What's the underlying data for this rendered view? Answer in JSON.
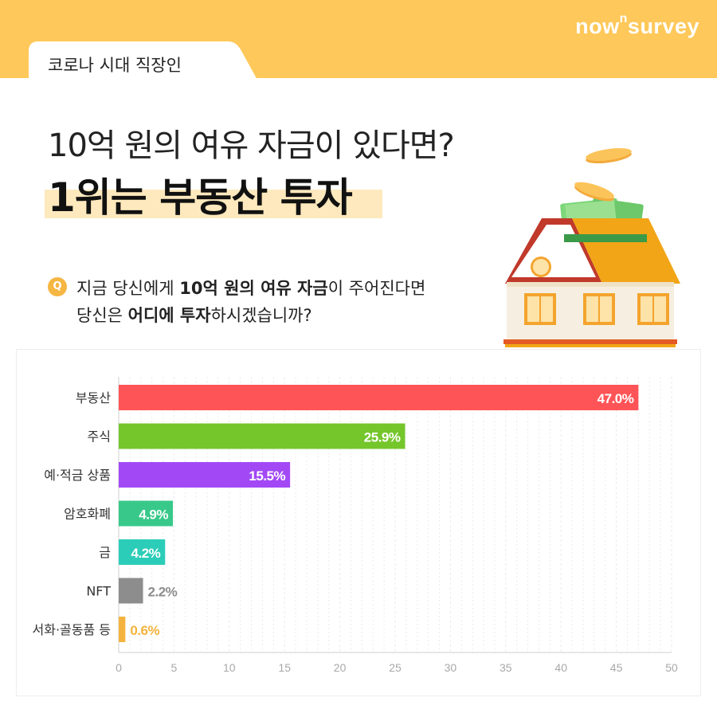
{
  "header": {
    "brand_main": "now",
    "brand_sup": "n",
    "brand_tail": "survey",
    "tab_label": "코로나 시대 직장인"
  },
  "headline": {
    "line1": "10억 원의 여유 자금이 있다면?",
    "line2": "1위는 부동산 투자"
  },
  "question": {
    "badge": "Q",
    "line1_a": "지금 당신에게 ",
    "line1_b": "10억 원의 여유 자금",
    "line1_c": "이 주어진다면",
    "line2_a": "당신은 ",
    "line2_b": "어디에 투자",
    "line2_c": "하시겠습니까?"
  },
  "colors": {
    "band": "#fec85a",
    "highlight": "#fde9bd",
    "badge": "#f6b642"
  },
  "chart_data": {
    "type": "bar",
    "orientation": "horizontal",
    "categories": [
      "부동산",
      "주식",
      "예·적금 상품",
      "암호화폐",
      "금",
      "NFT",
      "서화·골동품 등"
    ],
    "values": [
      47.0,
      25.9,
      15.5,
      4.9,
      4.2,
      2.2,
      0.6
    ],
    "value_labels": [
      "47.0%",
      "25.9%",
      "15.5%",
      "4.9%",
      "4.2%",
      "2.2%",
      "0.6%"
    ],
    "bar_colors": [
      "#ff5457",
      "#74c62a",
      "#a249f5",
      "#38c98a",
      "#2ccdb8",
      "#8d8d8d",
      "#f4b33e"
    ],
    "label_inside": [
      true,
      true,
      true,
      true,
      true,
      false,
      false
    ],
    "xlim": [
      0,
      50
    ],
    "xticks": [
      0,
      5,
      10,
      15,
      20,
      25,
      30,
      35,
      40,
      45,
      50
    ],
    "grid": true
  }
}
